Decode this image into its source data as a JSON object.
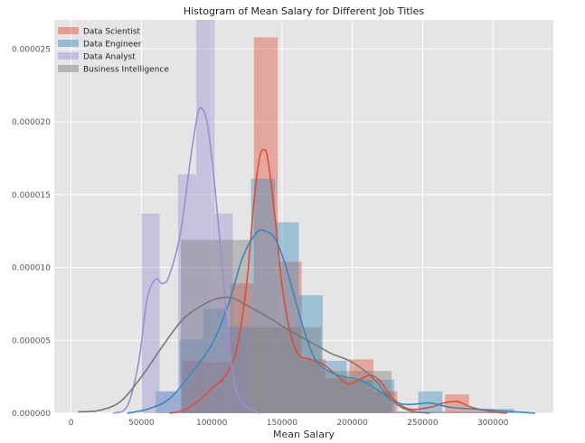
{
  "chart_data": {
    "type": "bar",
    "title": "Histogram of Mean Salary for Different Job Titles",
    "xlabel": "Mean Salary",
    "ylabel": "",
    "xlim": [
      -12000,
      343000
    ],
    "ylim": [
      0,
      2.7e-05
    ],
    "grid": true,
    "legend_position": "top-left",
    "x_ticks": [
      0,
      50000,
      100000,
      150000,
      200000,
      250000,
      300000
    ],
    "x_tick_labels": [
      "0",
      "50000",
      "100000",
      "150000",
      "200000",
      "250000",
      "300000"
    ],
    "y_ticks": [
      0,
      5e-06,
      1e-05,
      1.5e-05,
      2e-05,
      2.5e-05
    ],
    "y_tick_labels": [
      "0.000000",
      "0.000005",
      "0.000010",
      "0.000015",
      "0.000020",
      "0.000025"
    ],
    "series": [
      {
        "name": "Data Scientist",
        "color": "#E24A33",
        "bins": [
          {
            "x0": 79000,
            "x1": 96000,
            "y": 3.6e-06
          },
          {
            "x0": 96000,
            "x1": 113000,
            "y": 3.5e-06
          },
          {
            "x0": 113000,
            "x1": 130000,
            "y": 8.9e-06
          },
          {
            "x0": 130000,
            "x1": 147000,
            "y": 2.58e-05
          },
          {
            "x0": 147000,
            "x1": 164000,
            "y": 1.04e-05
          },
          {
            "x0": 164000,
            "x1": 181000,
            "y": 3.7e-06
          },
          {
            "x0": 181000,
            "x1": 198000,
            "y": 2.4e-06
          },
          {
            "x0": 198000,
            "x1": 215000,
            "y": 3.7e-06
          },
          {
            "x0": 215000,
            "x1": 232000,
            "y": 1.5e-06
          },
          {
            "x0": 232000,
            "x1": 249000,
            "y": 1e-07
          },
          {
            "x0": 249000,
            "x1": 266000,
            "y": 1e-07
          },
          {
            "x0": 266000,
            "x1": 283000,
            "y": 1.3e-06
          },
          {
            "x0": 283000,
            "x1": 300000,
            "y": 3e-07
          }
        ],
        "kde": [
          [
            70000,
            0
          ],
          [
            80000,
            2e-07
          ],
          [
            90000,
            8e-07
          ],
          [
            100000,
            1.7e-06
          ],
          [
            110000,
            2.6e-06
          ],
          [
            118000,
            4.5e-06
          ],
          [
            125000,
            9e-06
          ],
          [
            130000,
            1.45e-05
          ],
          [
            134000,
            1.75e-05
          ],
          [
            137000,
            1.81e-05
          ],
          [
            140000,
            1.74e-05
          ],
          [
            145000,
            1.35e-05
          ],
          [
            150000,
            8.8e-06
          ],
          [
            156000,
            5.5e-06
          ],
          [
            162000,
            4e-06
          ],
          [
            170000,
            3.7e-06
          ],
          [
            180000,
            3.3e-06
          ],
          [
            190000,
            2.5e-06
          ],
          [
            197000,
            2e-06
          ],
          [
            205000,
            2.3e-06
          ],
          [
            213000,
            2.6e-06
          ],
          [
            220000,
            2.2e-06
          ],
          [
            228000,
            1.1e-06
          ],
          [
            240000,
            3e-07
          ],
          [
            255000,
            4e-07
          ],
          [
            265000,
            7e-07
          ],
          [
            275000,
            8e-07
          ],
          [
            285000,
            4e-07
          ],
          [
            300000,
            1e-07
          ],
          [
            310000,
            0
          ]
        ]
      },
      {
        "name": "Data Engineer",
        "color": "#348ABD",
        "bins": [
          {
            "x0": 60000,
            "x1": 77000,
            "y": 1.5e-06
          },
          {
            "x0": 77000,
            "x1": 94000,
            "y": 5.1e-06
          },
          {
            "x0": 94000,
            "x1": 111000,
            "y": 7.2e-06
          },
          {
            "x0": 111000,
            "x1": 128000,
            "y": 5.9e-06
          },
          {
            "x0": 128000,
            "x1": 145000,
            "y": 1.61e-05
          },
          {
            "x0": 145000,
            "x1": 162000,
            "y": 1.31e-05
          },
          {
            "x0": 162000,
            "x1": 179000,
            "y": 8.1e-06
          },
          {
            "x0": 179000,
            "x1": 196000,
            "y": 3.6e-06
          },
          {
            "x0": 196000,
            "x1": 213000,
            "y": 2.3e-06
          },
          {
            "x0": 213000,
            "x1": 230000,
            "y": 2.3e-06
          },
          {
            "x0": 230000,
            "x1": 247000,
            "y": 1e-07
          },
          {
            "x0": 247000,
            "x1": 264000,
            "y": 1.5e-06
          },
          {
            "x0": 264000,
            "x1": 281000,
            "y": 1e-07
          },
          {
            "x0": 281000,
            "x1": 298000,
            "y": 1e-07
          },
          {
            "x0": 298000,
            "x1": 315000,
            "y": 3e-07
          }
        ],
        "kde": [
          [
            40000,
            0
          ],
          [
            55000,
            3e-07
          ],
          [
            70000,
            1e-06
          ],
          [
            85000,
            2.7e-06
          ],
          [
            100000,
            4.7e-06
          ],
          [
            112000,
            7.5e-06
          ],
          [
            122000,
            1.07e-05
          ],
          [
            132000,
            1.24e-05
          ],
          [
            138000,
            1.25e-05
          ],
          [
            145000,
            1.2e-05
          ],
          [
            152000,
            1.03e-05
          ],
          [
            160000,
            7.6e-06
          ],
          [
            168000,
            5e-06
          ],
          [
            176000,
            3.4e-06
          ],
          [
            190000,
            2.6e-06
          ],
          [
            205000,
            2.3e-06
          ],
          [
            218000,
            1.6e-06
          ],
          [
            230000,
            8e-07
          ],
          [
            240000,
            6e-07
          ],
          [
            255000,
            7e-07
          ],
          [
            270000,
            4e-07
          ],
          [
            285000,
            3e-07
          ],
          [
            300000,
            2e-07
          ],
          [
            315000,
            1e-07
          ],
          [
            330000,
            0
          ]
        ]
      },
      {
        "name": "Data Analyst",
        "color": "#988ED5",
        "bins": [
          {
            "x0": 50000,
            "x1": 63000,
            "y": 1.37e-05
          },
          {
            "x0": 63000,
            "x1": 76000,
            "y": 1.5e-06
          },
          {
            "x0": 76000,
            "x1": 89000,
            "y": 1.64e-05
          },
          {
            "x0": 89000,
            "x1": 102000,
            "y": 2.7e-05
          },
          {
            "x0": 102000,
            "x1": 115000,
            "y": 1.37e-05
          },
          {
            "x0": 115000,
            "x1": 128000,
            "y": 6.1e-06
          }
        ],
        "kde": [
          [
            30000,
            0
          ],
          [
            40000,
            5e-07
          ],
          [
            48000,
            3.5e-06
          ],
          [
            54000,
            7.8e-06
          ],
          [
            60000,
            9.2e-06
          ],
          [
            65000,
            8.9e-06
          ],
          [
            70000,
            9.5e-06
          ],
          [
            78000,
            1.25e-05
          ],
          [
            85000,
            1.75e-05
          ],
          [
            90000,
            2.05e-05
          ],
          [
            93000,
            2.09e-05
          ],
          [
            97000,
            1.98e-05
          ],
          [
            102000,
            1.58e-05
          ],
          [
            108000,
            9.5e-06
          ],
          [
            113000,
            4e-06
          ],
          [
            118000,
            1.4e-06
          ],
          [
            125000,
            4e-07
          ],
          [
            135000,
            0
          ]
        ]
      },
      {
        "name": "Business Intelligence",
        "color": "#777777",
        "bins": [
          {
            "x0": 78000,
            "x1": 103000,
            "y": 1.19e-05
          },
          {
            "x0": 103000,
            "x1": 128000,
            "y": 1.19e-05
          },
          {
            "x0": 128000,
            "x1": 153000,
            "y": 5.9e-06
          },
          {
            "x0": 153000,
            "x1": 178000,
            "y": 5.9e-06
          },
          {
            "x0": 178000,
            "x1": 203000,
            "y": 2.9e-06
          },
          {
            "x0": 203000,
            "x1": 228000,
            "y": 2.9e-06
          }
        ],
        "kde": [
          [
            5000,
            1e-07
          ],
          [
            20000,
            2e-07
          ],
          [
            35000,
            8e-07
          ],
          [
            50000,
            2.5e-06
          ],
          [
            65000,
            4.6e-06
          ],
          [
            80000,
            6.5e-06
          ],
          [
            95000,
            7.5e-06
          ],
          [
            105000,
            7.9e-06
          ],
          [
            115000,
            7.9e-06
          ],
          [
            125000,
            7.4e-06
          ],
          [
            140000,
            6.6e-06
          ],
          [
            155000,
            5.7e-06
          ],
          [
            170000,
            4.9e-06
          ],
          [
            185000,
            4.1e-06
          ],
          [
            200000,
            3.5e-06
          ],
          [
            215000,
            2.4e-06
          ],
          [
            225000,
            1.2e-06
          ],
          [
            235000,
            4e-07
          ],
          [
            245000,
            1e-07
          ],
          [
            255000,
            0
          ]
        ]
      }
    ]
  }
}
